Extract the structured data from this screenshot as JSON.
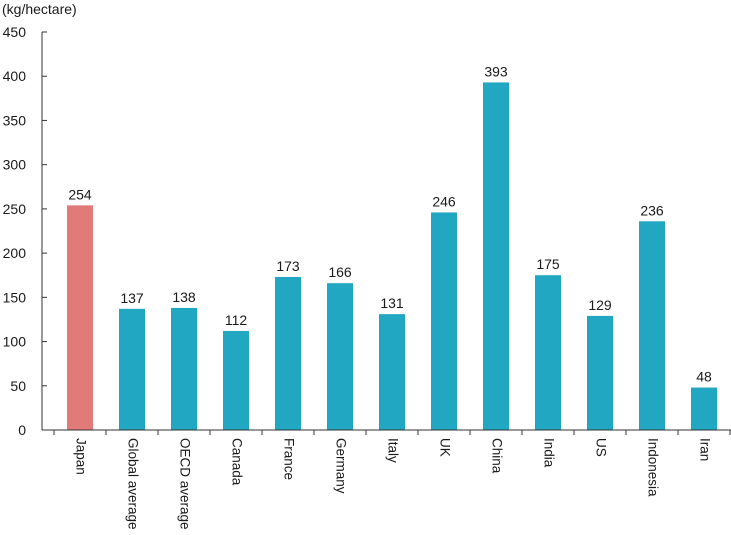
{
  "chart_data": {
    "type": "bar",
    "title": "",
    "xlabel": "",
    "ylabel": "(kg/hectare)",
    "ylim": [
      0,
      450
    ],
    "yticks": [
      0,
      50,
      100,
      150,
      200,
      250,
      300,
      350,
      400,
      450
    ],
    "grid": false,
    "categories": [
      "Japan",
      "Global average",
      "OECD average",
      "Canada",
      "France",
      "Germany",
      "Italy",
      "UK",
      "China",
      "India",
      "US",
      "Indonesia",
      "Iran"
    ],
    "values": [
      254,
      137,
      138,
      112,
      173,
      166,
      131,
      246,
      393,
      175,
      129,
      236,
      48
    ],
    "colors": {
      "highlight": "#e07b78",
      "default": "#22a7c3",
      "axis": "#333333"
    },
    "highlight_index": 0
  }
}
